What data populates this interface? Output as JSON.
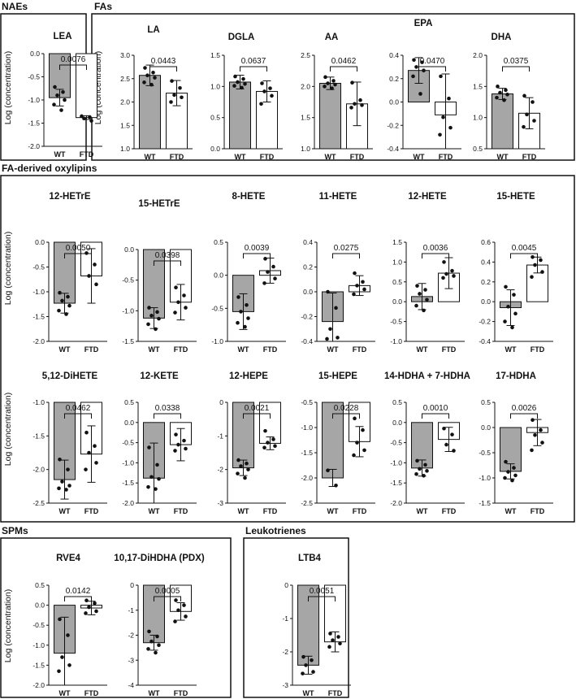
{
  "y_label": "Log (concentration)",
  "x_labels": [
    "WT",
    "FTD"
  ],
  "colors": {
    "wt_bar": "#a6a6a6",
    "ftd_bar": "#ffffff",
    "stroke": "#111111",
    "dot": "#111111"
  },
  "sections": [
    {
      "id": "naes",
      "title": "NAEs"
    },
    {
      "id": "fas",
      "title": "FAs"
    },
    {
      "id": "oxylipins",
      "title": "FA-derived oxylipins"
    },
    {
      "id": "spms",
      "title": "SPMs"
    },
    {
      "id": "leukotrienes",
      "title": "Leukotrienes"
    }
  ],
  "chart_data": [
    {
      "type": "bar",
      "section": "naes",
      "title": "LEA",
      "categories": [
        "WT",
        "FTD"
      ],
      "ylim": [
        -2.0,
        0.0
      ],
      "yticks": [
        -2.0,
        -1.5,
        -1.0,
        -0.5,
        0.0
      ],
      "values": [
        -0.95,
        -1.38
      ],
      "sd": [
        0.18,
        0.04
      ],
      "p_value": "0.0076",
      "points": [
        [
          -0.72,
          -0.83,
          -0.9,
          -1.0,
          -1.1,
          -1.22
        ],
        [
          -1.35,
          -1.37,
          -1.4,
          -1.45
        ]
      ]
    },
    {
      "type": "bar",
      "section": "fas",
      "title": "LA",
      "categories": [
        "WT",
        "FTD"
      ],
      "ylim": [
        1.0,
        3.0
      ],
      "yticks": [
        1.0,
        1.5,
        2.0,
        2.5,
        3.0
      ],
      "values": [
        2.57,
        2.19
      ],
      "sd": [
        0.22,
        0.27
      ],
      "p_value": "0.0443",
      "points": [
        [
          2.73,
          2.63,
          2.57,
          2.52,
          2.42,
          2.37
        ],
        [
          2.45,
          2.3,
          2.15,
          2.1,
          2.0
        ]
      ]
    },
    {
      "type": "bar",
      "section": "fas",
      "title": "DGLA",
      "categories": [
        "WT",
        "FTD"
      ],
      "ylim": [
        0.0,
        1.5
      ],
      "yticks": [
        0.0,
        0.5,
        1.0,
        1.5
      ],
      "values": [
        1.07,
        0.92
      ],
      "sd": [
        0.11,
        0.17
      ],
      "p_value": "0.0637",
      "points": [
        [
          1.16,
          1.12,
          1.07,
          1.04,
          1.01,
          0.98
        ],
        [
          1.05,
          0.97,
          0.92,
          0.85,
          0.72
        ]
      ]
    },
    {
      "type": "bar",
      "section": "fas",
      "title": "AA",
      "categories": [
        "WT",
        "FTD"
      ],
      "ylim": [
        1.0,
        2.5
      ],
      "yticks": [
        1.0,
        1.5,
        2.0,
        2.5
      ],
      "values": [
        2.05,
        1.72
      ],
      "sd": [
        0.1,
        0.35
      ],
      "p_value": "0.0462",
      "points": [
        [
          2.15,
          2.09,
          2.05,
          2.03,
          2.0,
          1.97
        ],
        [
          2.06,
          1.78,
          1.72,
          1.7,
          1.66
        ]
      ]
    },
    {
      "type": "bar",
      "section": "fas",
      "title": "EPA",
      "categories": [
        "WT",
        "FTD"
      ],
      "ylim": [
        -0.4,
        0.4
      ],
      "yticks": [
        -0.4,
        -0.2,
        0.0,
        0.2,
        0.4
      ],
      "values": [
        0.27,
        -0.11
      ],
      "sd": [
        0.11,
        0.35
      ],
      "p_value": "0.0470",
      "points": [
        [
          0.36,
          0.34,
          0.3,
          0.27,
          0.22,
          0.07
        ],
        [
          0.22,
          0.03,
          -0.13,
          -0.22,
          -0.28
        ]
      ]
    },
    {
      "type": "bar",
      "section": "fas",
      "title": "DHA",
      "categories": [
        "WT",
        "FTD"
      ],
      "ylim": [
        0.5,
        2.0
      ],
      "yticks": [
        0.5,
        1.0,
        1.5,
        2.0
      ],
      "values": [
        1.38,
        1.07
      ],
      "sd": [
        0.09,
        0.25
      ],
      "p_value": "0.0375",
      "points": [
        [
          1.5,
          1.44,
          1.4,
          1.37,
          1.32,
          1.28
        ],
        [
          1.35,
          1.25,
          1.05,
          0.95,
          0.85
        ]
      ]
    },
    {
      "type": "bar",
      "section": "oxylipins",
      "title": "12-HETrE",
      "categories": [
        "WT",
        "FTD"
      ],
      "ylim": [
        -2.0,
        0.0
      ],
      "yticks": [
        -2.0,
        -1.5,
        -1.0,
        -0.5,
        0.0
      ],
      "values": [
        -1.23,
        -0.68
      ],
      "sd": [
        0.2,
        0.55
      ],
      "p_value": "0.0050",
      "points": [
        [
          -1.02,
          -1.1,
          -1.18,
          -1.28,
          -1.38,
          -1.45
        ],
        [
          -0.22,
          -0.45,
          -0.68,
          -0.85
        ]
      ]
    },
    {
      "type": "bar",
      "section": "oxylipins",
      "title": "15-HETrE",
      "categories": [
        "WT",
        "FTD"
      ],
      "ylim": [
        -1.5,
        0.0
      ],
      "yticks": [
        -1.5,
        -1.0,
        -0.5,
        0.0
      ],
      "values": [
        -1.12,
        -0.86
      ],
      "sd": [
        0.17,
        0.29
      ],
      "p_value": "0.0398",
      "points": [
        [
          -0.95,
          -1.02,
          -1.08,
          -1.13,
          -1.22,
          -1.3
        ],
        [
          -0.62,
          -0.75,
          -0.86,
          -0.95,
          -1.03
        ]
      ]
    },
    {
      "type": "bar",
      "section": "oxylipins",
      "title": "8-HETE",
      "categories": [
        "WT",
        "FTD"
      ],
      "ylim": [
        -1.0,
        0.5
      ],
      "yticks": [
        -1.0,
        -0.5,
        0.0,
        0.5
      ],
      "values": [
        -0.55,
        0.07
      ],
      "sd": [
        0.27,
        0.19
      ],
      "p_value": "0.0039",
      "points": [
        [
          -0.33,
          -0.45,
          -0.55,
          -0.65,
          -0.72,
          -0.78
        ],
        [
          0.25,
          0.13,
          0.05,
          -0.05,
          -0.12
        ]
      ]
    },
    {
      "type": "bar",
      "section": "oxylipins",
      "title": "11-HETE",
      "categories": [
        "WT",
        "FTD"
      ],
      "ylim": [
        -0.4,
        0.4
      ],
      "yticks": [
        -0.4,
        -0.2,
        0.0,
        0.2,
        0.4
      ],
      "values": [
        -0.24,
        0.05
      ],
      "sd": [
        0.23,
        0.08
      ],
      "p_value": "0.0275",
      "points": [
        [
          0.0,
          -0.13,
          -0.3,
          -0.37,
          -0.38
        ],
        [
          0.15,
          0.08,
          0.05,
          0.02,
          -0.02
        ]
      ]
    },
    {
      "type": "bar",
      "section": "oxylipins",
      "title": "12-HETE",
      "categories": [
        "WT",
        "FTD"
      ],
      "ylim": [
        -1.0,
        1.5
      ],
      "yticks": [
        -1.0,
        -0.5,
        0.0,
        0.5,
        1.0,
        1.5
      ],
      "values": [
        0.13,
        0.72
      ],
      "sd": [
        0.33,
        0.39
      ],
      "p_value": "0.0036",
      "points": [
        [
          0.4,
          0.3,
          0.2,
          0.05,
          -0.1,
          -0.22
        ],
        [
          1.0,
          0.78,
          0.7,
          0.65,
          0.6
        ]
      ]
    },
    {
      "type": "bar",
      "section": "oxylipins",
      "title": "15-HETE",
      "categories": [
        "WT",
        "FTD"
      ],
      "ylim": [
        -0.4,
        0.6
      ],
      "yticks": [
        -0.4,
        -0.2,
        0.0,
        0.2,
        0.4,
        0.6
      ],
      "values": [
        -0.06,
        0.37
      ],
      "sd": [
        0.18,
        0.08
      ],
      "p_value": "0.0045",
      "points": [
        [
          0.15,
          0.07,
          -0.05,
          -0.12,
          -0.2,
          -0.26
        ],
        [
          0.45,
          0.42,
          0.37,
          0.3,
          0.25
        ]
      ]
    },
    {
      "type": "bar",
      "section": "oxylipins",
      "title": "5,12-DiHETE",
      "categories": [
        "WT",
        "FTD"
      ],
      "ylim": [
        -2.5,
        -1.0
      ],
      "yticks": [
        -2.5,
        -2.0,
        -1.5,
        -1.0
      ],
      "values": [
        -2.15,
        -1.77
      ],
      "sd": [
        0.29,
        0.42
      ],
      "p_value": "0.0462",
      "points": [
        [
          -1.85,
          -2.0,
          -2.18,
          -2.24,
          -2.28,
          -2.3
        ],
        [
          -1.45,
          -1.65,
          -1.75,
          -1.9,
          -2.0
        ]
      ]
    },
    {
      "type": "bar",
      "section": "oxylipins",
      "title": "12-KETE",
      "categories": [
        "WT",
        "FTD"
      ],
      "ylim": [
        -2.0,
        0.5
      ],
      "yticks": [
        -2.0,
        -1.5,
        -1.0,
        -0.5,
        0.0,
        0.5
      ],
      "values": [
        -1.38,
        -0.55
      ],
      "sd": [
        0.87,
        0.4
      ],
      "p_value": "0.0338",
      "points": [
        [
          -0.62,
          -1.05,
          -1.35,
          -1.4,
          -1.6,
          -1.65
        ],
        [
          -0.3,
          -0.45,
          -0.55,
          -0.65,
          -0.7
        ]
      ]
    },
    {
      "type": "bar",
      "section": "oxylipins",
      "title": "12-HEPE",
      "categories": [
        "WT",
        "FTD"
      ],
      "ylim": [
        -3,
        0
      ],
      "yticks": [
        -3,
        -2,
        -1,
        0
      ],
      "values": [
        -1.95,
        -1.22
      ],
      "sd": [
        0.23,
        0.19
      ],
      "p_value": "0.0021",
      "points": [
        [
          -1.72,
          -1.82,
          -1.9,
          -2.0,
          -2.12,
          -2.25
        ],
        [
          -0.85,
          -1.1,
          -1.2,
          -1.3,
          -1.35
        ]
      ]
    },
    {
      "type": "bar",
      "section": "oxylipins",
      "title": "15-HEPE",
      "categories": [
        "WT",
        "FTD"
      ],
      "ylim": [
        -2.5,
        -0.5
      ],
      "yticks": [
        -2.5,
        -2.0,
        -1.5,
        -1.0,
        -0.5
      ],
      "values": [
        -2.0,
        -1.28
      ],
      "sd": [
        0.17,
        0.3
      ],
      "p_value": "0.0228",
      "points": [
        [
          -1.85,
          -2.15
        ],
        [
          -0.82,
          -1.05,
          -1.3,
          -1.45,
          -1.55
        ]
      ]
    },
    {
      "type": "bar",
      "section": "oxylipins",
      "title": "14-HDHA + 7-HDHA",
      "categories": [
        "WT",
        "FTD"
      ],
      "ylim": [
        -2.0,
        0.5
      ],
      "yticks": [
        -2.0,
        -1.5,
        -1.0,
        -0.5,
        0.0,
        0.5
      ],
      "values": [
        -1.13,
        -0.42
      ],
      "sd": [
        0.2,
        0.3
      ],
      "p_value": "0.0010",
      "points": [
        [
          -0.95,
          -1.05,
          -1.15,
          -1.2,
          -1.28,
          -1.32
        ],
        [
          -0.15,
          -0.3,
          -0.55,
          -0.7
        ]
      ]
    },
    {
      "type": "bar",
      "section": "oxylipins",
      "title": "17-HDHA",
      "categories": [
        "WT",
        "FTD"
      ],
      "ylim": [
        -1.5,
        0.5
      ],
      "yticks": [
        -1.5,
        -1.0,
        -0.5,
        0.0,
        0.5
      ],
      "values": [
        -0.87,
        -0.1
      ],
      "sd": [
        0.15,
        0.26
      ],
      "p_value": "0.0026",
      "points": [
        [
          -0.68,
          -0.8,
          -0.88,
          -0.95,
          -1.0,
          -1.05
        ],
        [
          0.15,
          -0.05,
          -0.15,
          -0.3,
          -0.45
        ]
      ]
    },
    {
      "type": "bar",
      "section": "spms",
      "title": "RVE4",
      "categories": [
        "WT",
        "FTD"
      ],
      "ylim": [
        -2.0,
        0.5
      ],
      "yticks": [
        -2.0,
        -1.5,
        -1.0,
        -0.5,
        0.0,
        0.5
      ],
      "values": [
        -1.2,
        -0.07
      ],
      "sd": [
        0.9,
        0.17
      ],
      "p_value": "0.0142",
      "points": [
        [
          -0.35,
          -0.75,
          -1.3,
          -1.5,
          -1.65
        ],
        [
          0.12,
          0.05,
          -0.05,
          -0.15,
          -0.2
        ]
      ]
    },
    {
      "type": "bar",
      "section": "spms",
      "title": "10,17-DiHDHA (PDX)",
      "categories": [
        "WT",
        "FTD"
      ],
      "ylim": [
        -4,
        0
      ],
      "yticks": [
        -4,
        -3,
        -2,
        -1,
        0
      ],
      "values": [
        -2.3,
        -1.05
      ],
      "sd": [
        0.3,
        0.35
      ],
      "p_value": "0.0005",
      "points": [
        [
          -1.85,
          -2.05,
          -2.25,
          -2.4,
          -2.55,
          -2.7
        ],
        [
          -0.6,
          -0.8,
          -1.0,
          -1.25,
          -1.45
        ]
      ]
    },
    {
      "type": "bar",
      "section": "leukotrienes",
      "title": "LTB4",
      "categories": [
        "WT",
        "FTD"
      ],
      "ylim": [
        -3,
        0
      ],
      "yticks": [
        -3,
        -2,
        -1,
        0
      ],
      "values": [
        -2.4,
        -1.7
      ],
      "sd": [
        0.27,
        0.3
      ],
      "p_value": "0.0051",
      "points": [
        [
          -2.15,
          -2.25,
          -2.4,
          -2.6,
          -2.65
        ],
        [
          -1.45,
          -1.55,
          -1.65,
          -1.75,
          -1.85
        ]
      ]
    }
  ]
}
